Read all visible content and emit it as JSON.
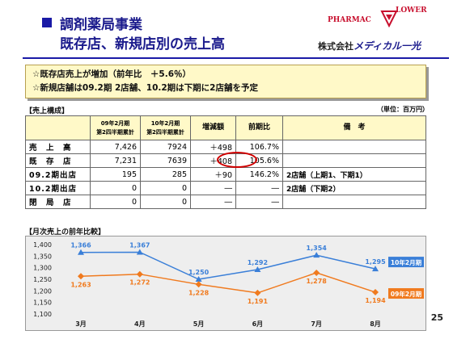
{
  "header": {
    "title_line1": "調剤薬局事業",
    "title_line2": "既存店、新規店別の売上高"
  },
  "logo": {
    "pharmac": "PHARMAC",
    "flower": "LOWER",
    "company_prefix": "株式会社",
    "company_brand": "メディカル一光"
  },
  "summary": [
    "☆既存店売上が増加（前年比　＋5.6％）",
    "☆新規店舗は09.2期 2店舗、10.2期は下期に2店舗を予定"
  ],
  "sales_table": {
    "label": "【売上構成】",
    "unit": "（単位：百万円）",
    "headers": [
      "",
      "09年2月期\n第2四半期累計",
      "10年2月期\n第2四半期累計",
      "増減額",
      "前期比",
      "備　考"
    ],
    "rows": [
      {
        "label": "売　上　高",
        "prev": "7,426",
        "curr": "7924",
        "diff": "＋498",
        "ratio": "106.7%",
        "note": ""
      },
      {
        "label": "既　存　店",
        "prev": "7,231",
        "curr": "7639",
        "diff": "＋408",
        "ratio": "105.6%",
        "note": ""
      },
      {
        "label": "09.2期出店",
        "prev": "195",
        "curr": "285",
        "diff": "＋90",
        "ratio": "146.2%",
        "note": "2店舗（上期1、下期1）"
      },
      {
        "label": "10.2期出店",
        "prev": "0",
        "curr": "0",
        "diff": "―",
        "ratio": "―",
        "note": "2店舗（下期2）"
      },
      {
        "label": "閉　局　店",
        "prev": "0",
        "curr": "0",
        "diff": "―",
        "ratio": "―",
        "note": ""
      }
    ]
  },
  "chart_section_label": "【月次売上の前年比較】",
  "chart_data": {
    "type": "line",
    "categories": [
      "3月",
      "4月",
      "5月",
      "6月",
      "7月",
      "8月"
    ],
    "series": [
      {
        "name": "10年2月期",
        "values": [
          1366,
          1367,
          1250,
          1292,
          1354,
          1295
        ],
        "color": "#3a7fd8"
      },
      {
        "name": "09年2月期",
        "values": [
          1263,
          1272,
          1228,
          1191,
          1278,
          1194
        ],
        "color": "#f07a1e"
      }
    ],
    "value_labels": [
      [
        "1,366",
        "1,367",
        "1,250",
        "1,292",
        "1,354",
        "1,295"
      ],
      [
        "1,263",
        "1,272",
        "1,228",
        "1,191",
        "1,278",
        "1,194"
      ]
    ],
    "yticks": [
      "1,100",
      "1,150",
      "1,200",
      "1,250",
      "1,300",
      "1,350",
      "1,400"
    ],
    "ylim": [
      1100,
      1400
    ],
    "legend": "right",
    "grid": false
  },
  "page_number": "25",
  "colors": {
    "title": "#1a1a8c",
    "summary_bg": "#fff9c8",
    "highlight_circle": "#d00000"
  }
}
